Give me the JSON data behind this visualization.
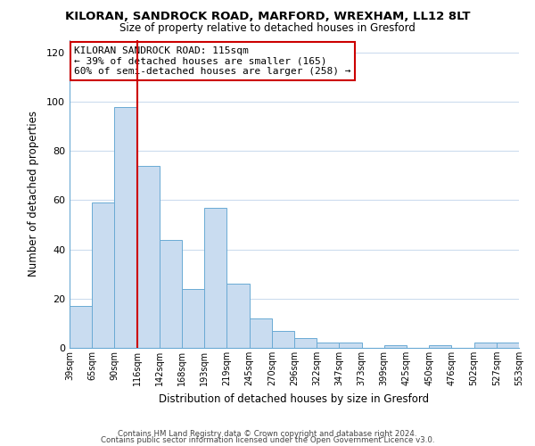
{
  "title": "KILORAN, SANDROCK ROAD, MARFORD, WREXHAM, LL12 8LT",
  "subtitle": "Size of property relative to detached houses in Gresford",
  "xlabel": "Distribution of detached houses by size in Gresford",
  "ylabel": "Number of detached properties",
  "bar_labels": [
    "39sqm",
    "65sqm",
    "90sqm",
    "116sqm",
    "142sqm",
    "168sqm",
    "193sqm",
    "219sqm",
    "245sqm",
    "270sqm",
    "296sqm",
    "322sqm",
    "347sqm",
    "373sqm",
    "399sqm",
    "425sqm",
    "450sqm",
    "476sqm",
    "502sqm",
    "527sqm",
    "553sqm"
  ],
  "bar_values": [
    17,
    59,
    98,
    74,
    44,
    24,
    57,
    26,
    12,
    7,
    4,
    2,
    2,
    0,
    1,
    0,
    1,
    0,
    2,
    2
  ],
  "bar_color": "#c9dcf0",
  "bar_edge_color": "#6aaad4",
  "property_line_x": 3,
  "property_line_color": "#cc0000",
  "annotation_title": "KILORAN SANDROCK ROAD: 115sqm",
  "annotation_line1": "← 39% of detached houses are smaller (165)",
  "annotation_line2": "60% of semi-detached houses are larger (258) →",
  "annotation_box_color": "#ffffff",
  "annotation_box_edge": "#cc0000",
  "ylim": [
    0,
    125
  ],
  "yticks": [
    0,
    20,
    40,
    60,
    80,
    100,
    120
  ],
  "footer1": "Contains HM Land Registry data © Crown copyright and database right 2024.",
  "footer2": "Contains public sector information licensed under the Open Government Licence v3.0.",
  "background_color": "#ffffff",
  "grid_color": "#ccdcee"
}
